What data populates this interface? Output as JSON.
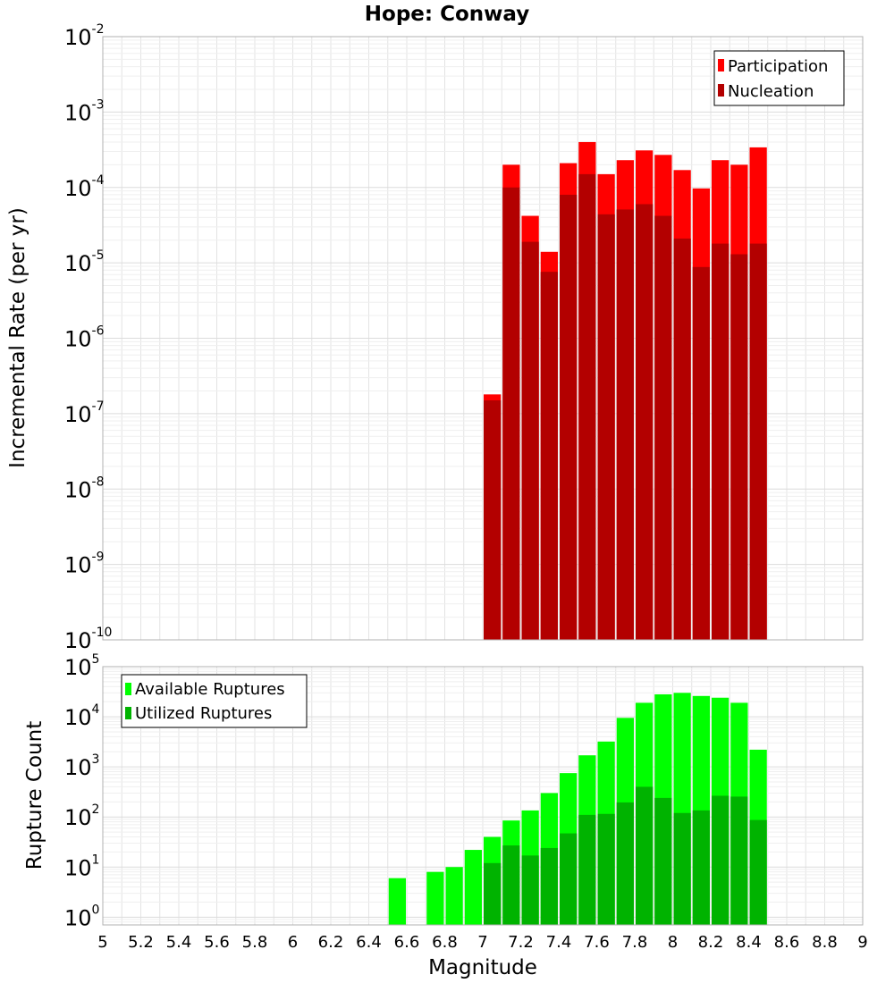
{
  "chart_data": [
    {
      "type": "bar",
      "title": "Hope: Conway",
      "xlabel": "",
      "ylabel": "Incremental Rate (per yr)",
      "xlim": [
        5,
        9
      ],
      "ylim": [
        1e-10,
        0.01
      ],
      "y_scale": "log",
      "grid": true,
      "legend_position": "top-right",
      "bar_width": 0.1,
      "x": [
        7.0,
        7.1,
        7.2,
        7.3,
        7.4,
        7.5,
        7.6,
        7.7,
        7.8,
        7.9,
        8.0,
        8.1,
        8.2,
        8.3,
        8.4
      ],
      "series": [
        {
          "name": "Participation",
          "color": "#ff0000",
          "values": [
            1.8e-07,
            0.0002,
            4.2e-05,
            1.4e-05,
            0.00021,
            0.0004,
            0.00015,
            0.00023,
            0.00031,
            0.00027,
            0.00017,
            9.7e-05,
            0.00023,
            0.0002,
            0.00034
          ]
        },
        {
          "name": "Nucleation",
          "color": "#b30000",
          "values": [
            1.5e-07,
            0.0001,
            1.9e-05,
            7.6e-06,
            8e-05,
            0.00015,
            4.4e-05,
            5.1e-05,
            6e-05,
            4.2e-05,
            2.1e-05,
            8.8e-06,
            1.8e-05,
            1.3e-05,
            1.8e-05
          ]
        }
      ],
      "y_ticks": [
        {
          "base": "10",
          "exp": "-10"
        },
        {
          "base": "10",
          "exp": "-9"
        },
        {
          "base": "10",
          "exp": "-8"
        },
        {
          "base": "10",
          "exp": "-7"
        },
        {
          "base": "10",
          "exp": "-6"
        },
        {
          "base": "10",
          "exp": "-5"
        },
        {
          "base": "10",
          "exp": "-4"
        },
        {
          "base": "10",
          "exp": "-3"
        },
        {
          "base": "10",
          "exp": "-2"
        }
      ]
    },
    {
      "type": "bar",
      "title": "",
      "xlabel": "Magnitude",
      "ylabel": "Rupture Count",
      "xlim": [
        5,
        9
      ],
      "ylim": [
        0.7,
        100000
      ],
      "y_scale": "log",
      "grid": true,
      "legend_position": "top-left",
      "bar_width": 0.1,
      "x": [
        6.5,
        6.6,
        6.7,
        6.8,
        6.9,
        7.0,
        7.1,
        7.2,
        7.3,
        7.4,
        7.5,
        7.6,
        7.7,
        7.8,
        7.9,
        8.0,
        8.1,
        8.2,
        8.3,
        8.4
      ],
      "series": [
        {
          "name": "Available Ruptures",
          "color": "#00ff00",
          "values": [
            6,
            null,
            8,
            10,
            22,
            40,
            85,
            135,
            300,
            750,
            1700,
            3200,
            9500,
            19000,
            28000,
            30000,
            26000,
            24000,
            19000,
            2200
          ]
        },
        {
          "name": "Utilized Ruptures",
          "color": "#00b300",
          "values": [
            null,
            null,
            null,
            null,
            null,
            12,
            27,
            17,
            24,
            47,
            110,
            115,
            195,
            400,
            240,
            120,
            135,
            265,
            255,
            87
          ]
        }
      ],
      "x_ticks": [
        "5",
        "5.2",
        "5.4",
        "5.6",
        "5.8",
        "6",
        "6.2",
        "6.4",
        "6.6",
        "6.8",
        "7",
        "7.2",
        "7.4",
        "7.6",
        "7.8",
        "8",
        "8.2",
        "8.4",
        "8.6",
        "8.8",
        "9"
      ],
      "y_ticks": [
        {
          "base": "10",
          "exp": "0"
        },
        {
          "base": "10",
          "exp": "1"
        },
        {
          "base": "10",
          "exp": "2"
        },
        {
          "base": "10",
          "exp": "3"
        },
        {
          "base": "10",
          "exp": "4"
        },
        {
          "base": "10",
          "exp": "5"
        }
      ]
    }
  ]
}
